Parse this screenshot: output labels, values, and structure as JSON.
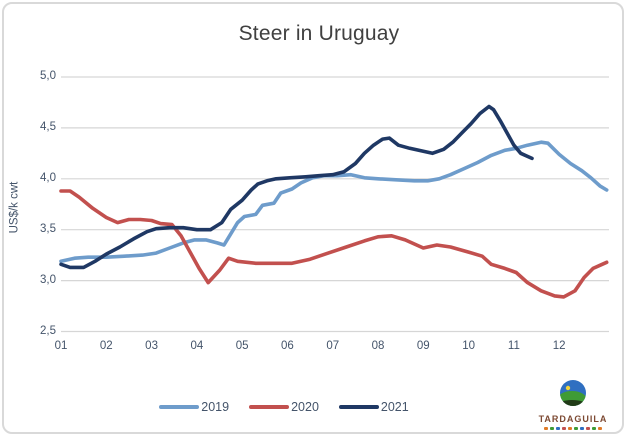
{
  "window": {
    "background": "#ffffff",
    "frame_border_color": "#d9d9d9"
  },
  "colors": {
    "title_text": "#404040",
    "axis_text": "#44546A",
    "gridline": "#d6d6d6"
  },
  "logo": {
    "name": "TARDAGUILA",
    "globe_sky": "#2f6fc1",
    "globe_hill": "#3f9b35",
    "globe_sun": "#f2d53c"
  },
  "chart_data": {
    "type": "line",
    "title": "Steer in Uruguay",
    "xlabel": "",
    "ylabel": "US$/k cwt",
    "grid": "horizontal",
    "legend_position": "bottom-center",
    "xlim": [
      1,
      13.1
    ],
    "ylim": [
      2.5,
      5.0
    ],
    "x_ticks": [
      {
        "label": "01",
        "value": 1
      },
      {
        "label": "02",
        "value": 2
      },
      {
        "label": "03",
        "value": 3
      },
      {
        "label": "04",
        "value": 4
      },
      {
        "label": "05",
        "value": 5
      },
      {
        "label": "06",
        "value": 6
      },
      {
        "label": "07",
        "value": 7
      },
      {
        "label": "08",
        "value": 8
      },
      {
        "label": "09",
        "value": 9
      },
      {
        "label": "10",
        "value": 10
      },
      {
        "label": "11",
        "value": 11
      },
      {
        "label": "12",
        "value": 12
      }
    ],
    "y_ticks": [
      {
        "label": "5,0",
        "value": 5.0
      },
      {
        "label": "4,5",
        "value": 4.5
      },
      {
        "label": "4,0",
        "value": 4.0
      },
      {
        "label": "3,5",
        "value": 3.5
      },
      {
        "label": "3,0",
        "value": 3.0
      },
      {
        "label": "2,5",
        "value": 2.5
      }
    ],
    "x_unit": "month of year (weekly data)",
    "series": [
      {
        "name": "2019",
        "color": "#6E9CCB",
        "points": [
          [
            1.0,
            3.19
          ],
          [
            1.3,
            3.22
          ],
          [
            1.6,
            3.23
          ],
          [
            2.0,
            3.23
          ],
          [
            2.4,
            3.24
          ],
          [
            2.8,
            3.25
          ],
          [
            3.1,
            3.27
          ],
          [
            3.4,
            3.32
          ],
          [
            3.7,
            3.37
          ],
          [
            3.95,
            3.4
          ],
          [
            4.2,
            3.4
          ],
          [
            4.45,
            3.37
          ],
          [
            4.6,
            3.35
          ],
          [
            4.75,
            3.46
          ],
          [
            4.9,
            3.57
          ],
          [
            5.05,
            3.63
          ],
          [
            5.3,
            3.65
          ],
          [
            5.45,
            3.74
          ],
          [
            5.7,
            3.76
          ],
          [
            5.85,
            3.86
          ],
          [
            6.1,
            3.9
          ],
          [
            6.3,
            3.96
          ],
          [
            6.55,
            4.01
          ],
          [
            6.8,
            4.03
          ],
          [
            7.1,
            4.03
          ],
          [
            7.4,
            4.04
          ],
          [
            7.7,
            4.01
          ],
          [
            8.0,
            4.0
          ],
          [
            8.4,
            3.99
          ],
          [
            8.8,
            3.98
          ],
          [
            9.1,
            3.98
          ],
          [
            9.35,
            4.0
          ],
          [
            9.6,
            4.04
          ],
          [
            9.9,
            4.1
          ],
          [
            10.2,
            4.16
          ],
          [
            10.5,
            4.23
          ],
          [
            10.8,
            4.28
          ],
          [
            11.05,
            4.3
          ],
          [
            11.3,
            4.33
          ],
          [
            11.6,
            4.36
          ],
          [
            11.75,
            4.35
          ],
          [
            12.0,
            4.24
          ],
          [
            12.25,
            4.15
          ],
          [
            12.5,
            4.08
          ],
          [
            12.7,
            4.01
          ],
          [
            12.9,
            3.93
          ],
          [
            13.05,
            3.89
          ]
        ]
      },
      {
        "name": "2020",
        "color": "#C2504E",
        "points": [
          [
            1.0,
            3.88
          ],
          [
            1.2,
            3.88
          ],
          [
            1.4,
            3.82
          ],
          [
            1.7,
            3.71
          ],
          [
            2.0,
            3.62
          ],
          [
            2.25,
            3.57
          ],
          [
            2.5,
            3.6
          ],
          [
            2.75,
            3.6
          ],
          [
            3.0,
            3.59
          ],
          [
            3.2,
            3.56
          ],
          [
            3.45,
            3.55
          ],
          [
            3.65,
            3.44
          ],
          [
            3.85,
            3.28
          ],
          [
            4.05,
            3.12
          ],
          [
            4.25,
            2.98
          ],
          [
            4.5,
            3.1
          ],
          [
            4.7,
            3.22
          ],
          [
            4.9,
            3.19
          ],
          [
            5.3,
            3.17
          ],
          [
            5.7,
            3.17
          ],
          [
            6.1,
            3.17
          ],
          [
            6.5,
            3.21
          ],
          [
            6.9,
            3.27
          ],
          [
            7.3,
            3.33
          ],
          [
            7.7,
            3.39
          ],
          [
            8.0,
            3.43
          ],
          [
            8.3,
            3.44
          ],
          [
            8.6,
            3.4
          ],
          [
            9.0,
            3.32
          ],
          [
            9.3,
            3.35
          ],
          [
            9.6,
            3.33
          ],
          [
            10.0,
            3.28
          ],
          [
            10.3,
            3.24
          ],
          [
            10.5,
            3.16
          ],
          [
            10.8,
            3.12
          ],
          [
            11.05,
            3.08
          ],
          [
            11.3,
            2.98
          ],
          [
            11.6,
            2.9
          ],
          [
            11.9,
            2.85
          ],
          [
            12.1,
            2.84
          ],
          [
            12.35,
            2.9
          ],
          [
            12.55,
            3.03
          ],
          [
            12.75,
            3.12
          ],
          [
            12.95,
            3.16
          ],
          [
            13.05,
            3.18
          ]
        ]
      },
      {
        "name": "2021",
        "color": "#1F3864",
        "points": [
          [
            1.0,
            3.16
          ],
          [
            1.2,
            3.13
          ],
          [
            1.5,
            3.13
          ],
          [
            1.75,
            3.19
          ],
          [
            2.0,
            3.26
          ],
          [
            2.3,
            3.33
          ],
          [
            2.6,
            3.41
          ],
          [
            2.9,
            3.48
          ],
          [
            3.1,
            3.51
          ],
          [
            3.4,
            3.52
          ],
          [
            3.7,
            3.52
          ],
          [
            4.0,
            3.5
          ],
          [
            4.3,
            3.5
          ],
          [
            4.55,
            3.57
          ],
          [
            4.75,
            3.7
          ],
          [
            5.0,
            3.79
          ],
          [
            5.2,
            3.89
          ],
          [
            5.35,
            3.95
          ],
          [
            5.55,
            3.98
          ],
          [
            5.75,
            4.0
          ],
          [
            6.05,
            4.01
          ],
          [
            6.4,
            4.02
          ],
          [
            6.7,
            4.03
          ],
          [
            7.0,
            4.04
          ],
          [
            7.25,
            4.07
          ],
          [
            7.5,
            4.15
          ],
          [
            7.7,
            4.25
          ],
          [
            7.9,
            4.33
          ],
          [
            8.1,
            4.39
          ],
          [
            8.25,
            4.4
          ],
          [
            8.45,
            4.33
          ],
          [
            8.7,
            4.3
          ],
          [
            9.0,
            4.27
          ],
          [
            9.2,
            4.25
          ],
          [
            9.45,
            4.29
          ],
          [
            9.65,
            4.36
          ],
          [
            9.85,
            4.45
          ],
          [
            10.05,
            4.54
          ],
          [
            10.25,
            4.64
          ],
          [
            10.45,
            4.71
          ],
          [
            10.55,
            4.68
          ],
          [
            10.7,
            4.57
          ],
          [
            10.85,
            4.45
          ],
          [
            11.0,
            4.33
          ],
          [
            11.15,
            4.25
          ],
          [
            11.3,
            4.22
          ],
          [
            11.4,
            4.2
          ]
        ]
      }
    ]
  }
}
